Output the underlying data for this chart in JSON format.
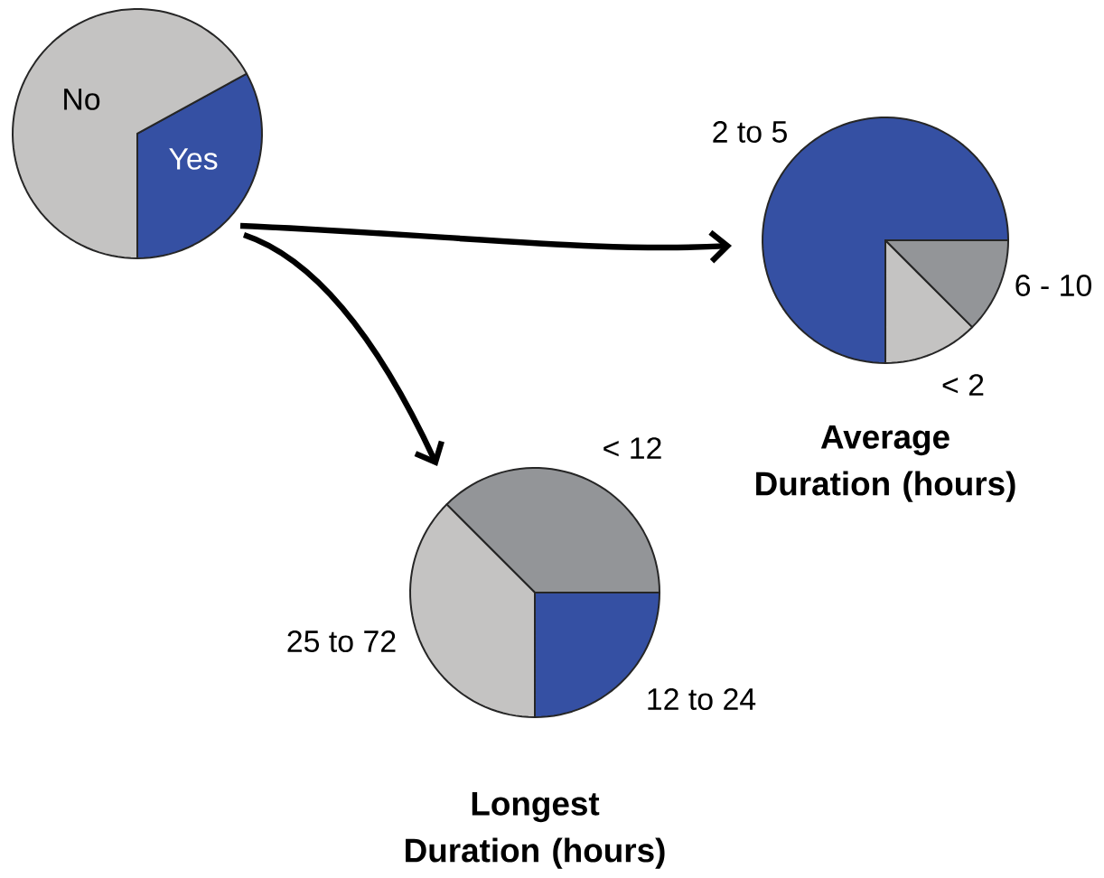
{
  "chart_data": [
    {
      "type": "pie",
      "categories": [
        "Yes",
        "No"
      ],
      "values": [
        33,
        67
      ],
      "colors": [
        "#3550a3",
        "#c4c3c2"
      ]
    },
    {
      "type": "pie",
      "title": "Average Duration (hours)",
      "categories": [
        "2 to 5",
        "< 2",
        "6 - 10"
      ],
      "values": [
        75,
        12.5,
        12.5
      ],
      "colors": [
        "#3550a3",
        "#c4c3c2",
        "#939598"
      ]
    },
    {
      "type": "pie",
      "title": "Longest Duration (hours)",
      "categories": [
        "< 12",
        "25 to 72",
        "12 to 24"
      ],
      "values": [
        37.5,
        37.5,
        25
      ],
      "colors": [
        "#939598",
        "#c4c3c2",
        "#3550a3"
      ]
    }
  ]
}
